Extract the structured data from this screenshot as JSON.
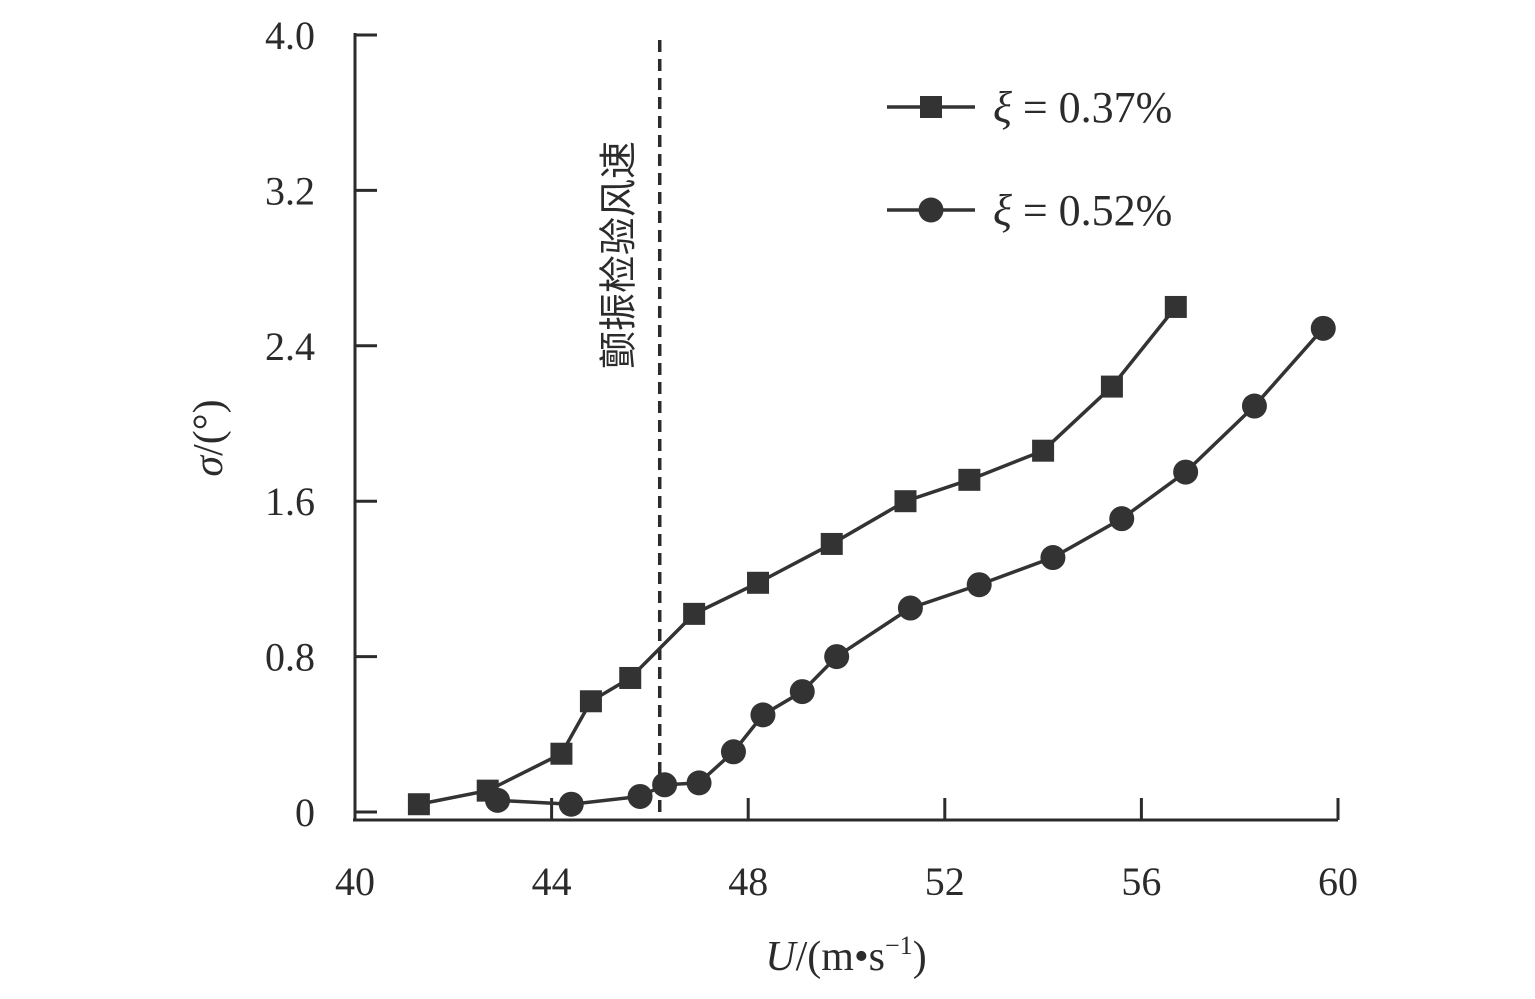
{
  "chart_data": {
    "type": "line",
    "title": "",
    "xlabel": {
      "symbol": "U",
      "unit": "/(m•s",
      "exp": "−1",
      "close": ")"
    },
    "ylabel": {
      "symbol": "σ",
      "unit": "/(°)"
    },
    "xlim": [
      40,
      60
    ],
    "ylim": [
      0,
      4.0
    ],
    "x_ticks": [
      "40",
      "44",
      "48",
      "52",
      "56",
      "60"
    ],
    "x_tick_values": [
      40,
      44,
      48,
      52,
      56,
      60
    ],
    "y_ticks": [
      "0",
      "0.8",
      "1.6",
      "2.4",
      "3.2",
      "4.0"
    ],
    "y_tick_values": [
      0,
      0.8,
      1.6,
      2.4,
      3.2,
      4.0
    ],
    "grid": false,
    "legend_position": "top-right",
    "annotation": {
      "text": "颤振检验风速",
      "x": 46.2,
      "orientation": "vertical",
      "style": "dashed"
    },
    "series": [
      {
        "name": "ξ = 0.37%",
        "symbol": "ξ",
        "value_text": " = 0.37%",
        "marker": "square",
        "color": "#333333",
        "x": [
          41.3,
          42.7,
          44.2,
          44.8,
          45.6,
          46.9,
          48.2,
          49.7,
          51.2,
          52.5,
          54.0,
          55.4,
          56.7
        ],
        "y": [
          0.04,
          0.11,
          0.3,
          0.57,
          0.69,
          1.02,
          1.18,
          1.38,
          1.6,
          1.71,
          1.86,
          2.19,
          2.6
        ]
      },
      {
        "name": "ξ = 0.52%",
        "symbol": "ξ",
        "value_text": " = 0.52%",
        "marker": "circle",
        "color": "#333333",
        "x": [
          42.9,
          44.4,
          45.8,
          46.3,
          47.0,
          47.7,
          48.3,
          49.1,
          49.8,
          51.3,
          52.7,
          54.2,
          55.6,
          56.9,
          58.3,
          59.7
        ],
        "y": [
          0.06,
          0.04,
          0.08,
          0.14,
          0.15,
          0.31,
          0.5,
          0.62,
          0.8,
          1.05,
          1.17,
          1.31,
          1.51,
          1.75,
          2.09,
          2.49
        ]
      }
    ]
  }
}
